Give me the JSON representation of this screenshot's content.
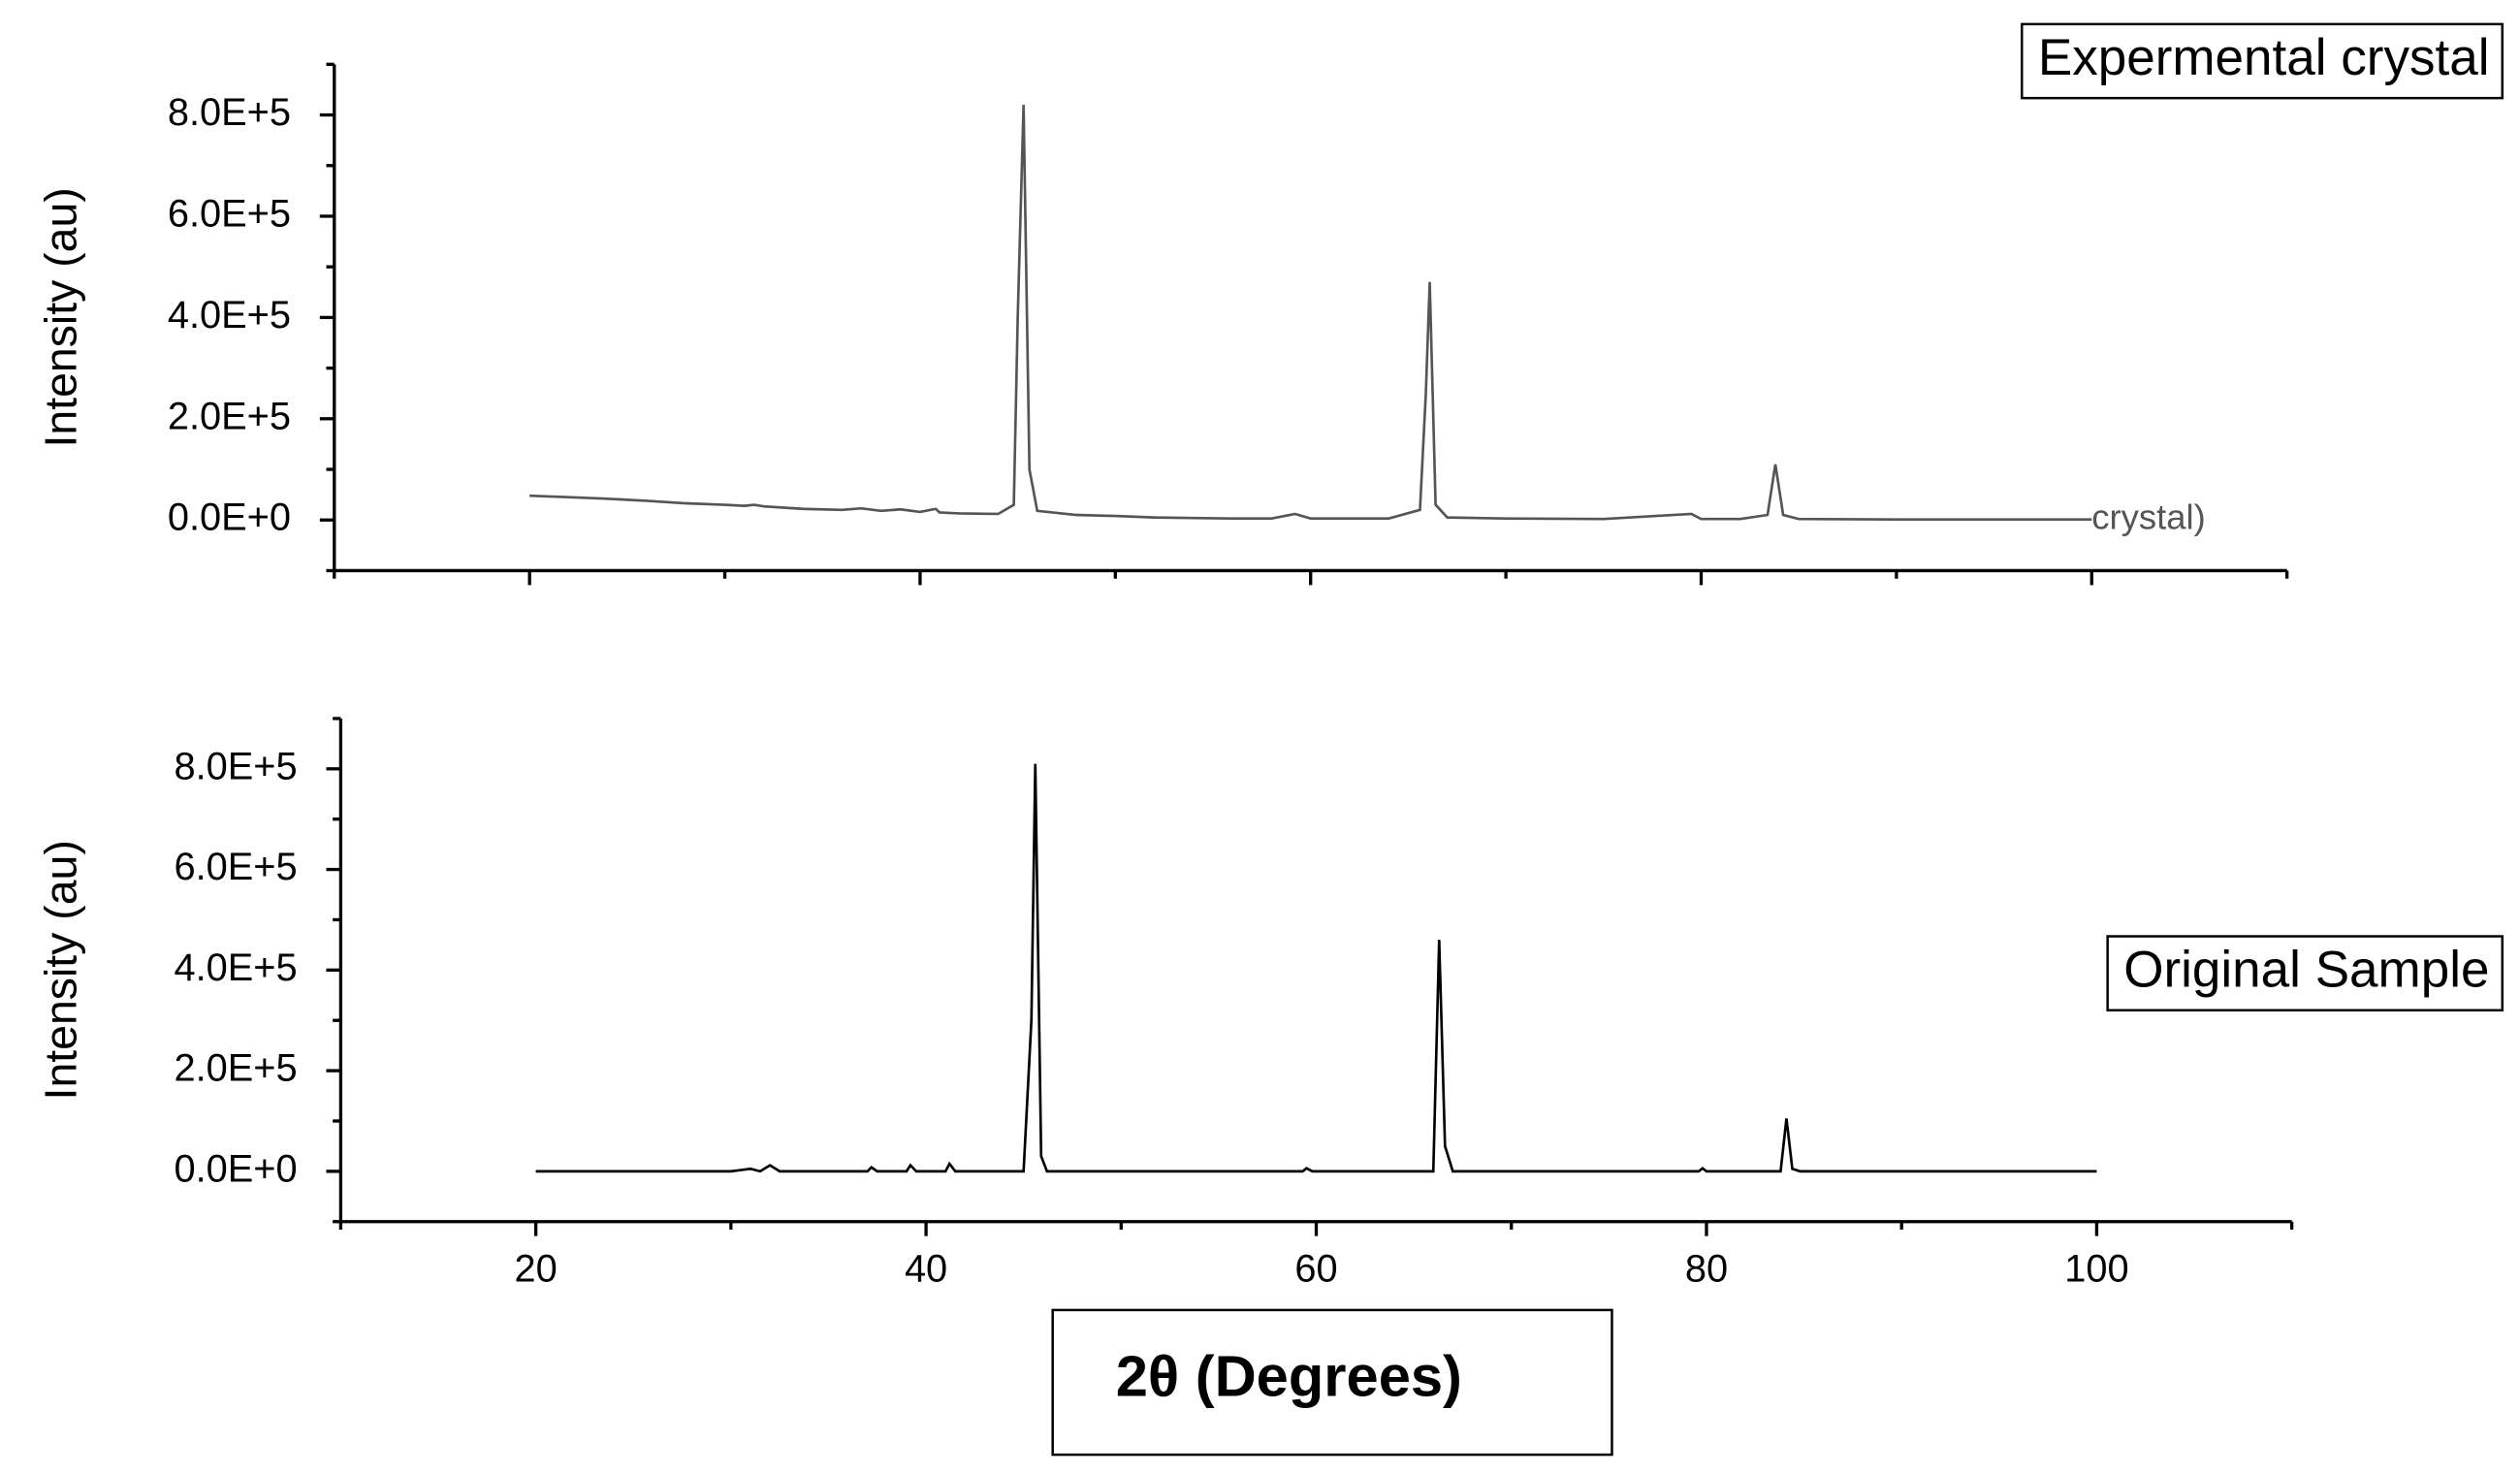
{
  "chart_data": [
    {
      "type": "line",
      "ylabel": "Intensity (au)",
      "annotation": "crystal)",
      "xlim": [
        10,
        110
      ],
      "xticks": [
        20,
        40,
        60,
        80,
        100
      ],
      "xminorticks": [
        10,
        30,
        50,
        70,
        90,
        110
      ],
      "xtick_labels": false,
      "ylim": [
        -100000,
        900000
      ],
      "yticks": [
        {
          "value": 0,
          "label": "0.0E+0"
        },
        {
          "value": 200000,
          "label": "2.0E+5"
        },
        {
          "value": 400000,
          "label": "4.0E+5"
        },
        {
          "value": 600000,
          "label": "6.0E+5"
        },
        {
          "value": 800000,
          "label": "8.0E+5"
        }
      ],
      "yminorticks": [
        -100000,
        100000,
        300000,
        500000,
        700000,
        900000
      ],
      "legend_corner": "top-right",
      "series": [
        {
          "name": "Expermental crystal",
          "color": "#555555",
          "x": [
            20,
            22,
            24,
            26,
            28,
            30,
            31,
            31.5,
            32,
            34,
            36,
            37,
            38,
            39,
            40,
            40.8,
            41,
            42,
            44,
            44.8,
            45.0,
            45.3,
            45.6,
            46,
            48,
            50,
            52,
            54,
            56,
            58,
            59.2,
            60,
            62,
            64,
            65.6,
            65.9,
            66.1,
            66.4,
            67,
            70,
            75,
            79.5,
            80,
            82,
            83.4,
            83.8,
            84.2,
            85,
            90,
            95,
            100
          ],
          "values": [
            48000,
            45000,
            42000,
            38000,
            33000,
            30000,
            28000,
            30000,
            27000,
            22000,
            20000,
            23000,
            18000,
            21000,
            16000,
            22000,
            15000,
            13000,
            12000,
            30000,
            400000,
            820000,
            100000,
            18000,
            10000,
            8000,
            5000,
            4000,
            3000,
            3000,
            12000,
            3000,
            3000,
            3000,
            20000,
            250000,
            470000,
            30000,
            5000,
            3000,
            2000,
            12000,
            2000,
            2000,
            10000,
            110000,
            10000,
            2000,
            1000,
            1000,
            1000
          ]
        }
      ]
    },
    {
      "type": "line",
      "ylabel": "Intensity (au)",
      "xlabel": "2θ (Degrees)",
      "xlim": [
        10,
        110
      ],
      "xticks": [
        20,
        40,
        60,
        80,
        100
      ],
      "xminorticks": [
        10,
        30,
        50,
        70,
        90,
        110
      ],
      "xtick_labels": true,
      "ylim": [
        -100000,
        900000
      ],
      "yticks": [
        {
          "value": 0,
          "label": "0.0E+0"
        },
        {
          "value": 200000,
          "label": "2.0E+5"
        },
        {
          "value": 400000,
          "label": "4.0E+5"
        },
        {
          "value": 600000,
          "label": "6.0E+5"
        },
        {
          "value": 800000,
          "label": "8.0E+5"
        }
      ],
      "yminorticks": [
        -100000,
        100000,
        300000,
        500000,
        700000,
        900000
      ],
      "legend_corner": "right",
      "series": [
        {
          "name": "Original Sample",
          "color": "#000000",
          "x": [
            20,
            30,
            31,
            31.5,
            32,
            32.5,
            37,
            37.2,
            37.5,
            39,
            39.2,
            39.5,
            41,
            41.2,
            41.5,
            45,
            45.4,
            45.6,
            45.9,
            46.2,
            59.3,
            59.5,
            59.8,
            66,
            66.3,
            66.6,
            67,
            79.6,
            79.8,
            80,
            83.8,
            84.1,
            84.4,
            84.8,
            100
          ],
          "values": [
            0,
            0,
            5000,
            0,
            12000,
            0,
            0,
            8000,
            0,
            0,
            12000,
            0,
            0,
            15000,
            0,
            0,
            300000,
            810000,
            30000,
            0,
            0,
            6000,
            0,
            0,
            460000,
            50000,
            0,
            0,
            6000,
            0,
            0,
            105000,
            5000,
            0,
            0
          ]
        }
      ]
    }
  ]
}
